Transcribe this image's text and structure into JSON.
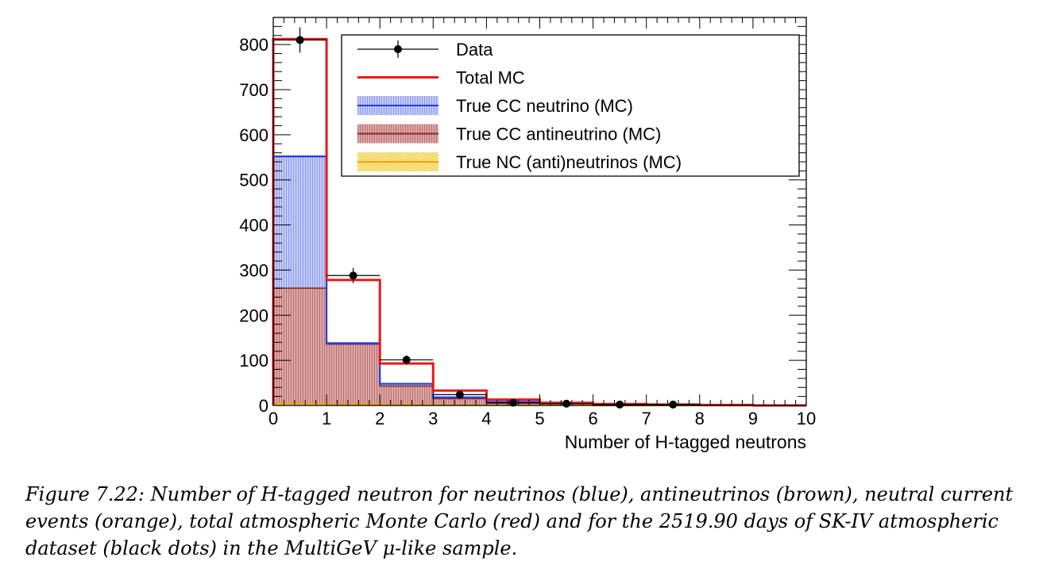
{
  "chart_data": {
    "type": "histogram",
    "xlabel": "Number of H-tagged neutrons",
    "ylabel": "",
    "xlim": [
      0,
      10
    ],
    "ylim": [
      0,
      860
    ],
    "x_ticks": [
      "0",
      "1",
      "2",
      "3",
      "4",
      "5",
      "6",
      "7",
      "8",
      "9",
      "10"
    ],
    "y_ticks": [
      "0",
      "100",
      "200",
      "300",
      "400",
      "500",
      "600",
      "700",
      "800"
    ],
    "bin_edges": [
      0,
      1,
      2,
      3,
      4,
      5,
      6,
      7,
      8,
      9,
      10
    ],
    "series": [
      {
        "name": "Total MC",
        "style": "line",
        "color": "#e8191b",
        "values": [
          812,
          278,
          93,
          33,
          13,
          6,
          3,
          2,
          1,
          0
        ]
      },
      {
        "name": "True CC neutrino (MC)",
        "style": "fill",
        "color": "#1f3ce6",
        "fill": "#b3bdf3",
        "values": [
          552,
          138,
          48,
          18,
          8,
          4,
          2,
          1,
          1,
          0
        ]
      },
      {
        "name": "True CC antineutrino (MC)",
        "style": "fill",
        "color": "#8a2a2a",
        "fill": "#d69a9a",
        "values": [
          260,
          136,
          43,
          15,
          5,
          2,
          1,
          1,
          0,
          0
        ]
      },
      {
        "name": "True NC (anti)neutrinos (MC)",
        "style": "fill",
        "color": "#f5a300",
        "fill": "#f7d86a",
        "values": [
          4,
          3,
          2,
          1,
          1,
          1,
          0,
          0,
          0,
          0
        ]
      }
    ],
    "data_points": {
      "name": "Data",
      "x": [
        0.5,
        1.5,
        2.5,
        3.5,
        4.5,
        5.5,
        6.5,
        7.5
      ],
      "y": [
        810,
        288,
        101,
        24,
        6,
        4,
        2,
        2
      ],
      "yerr": [
        28,
        17,
        10,
        5,
        2.5,
        2,
        1.4,
        1.4
      ]
    },
    "legend": {
      "placement": "top-right"
    }
  },
  "caption": {
    "text": "Figure 7.22: Number of H-tagged neutron for neutrinos (blue), antineutrinos (brown), neutral current events (orange), total atmospheric Monte Carlo (red) and for the 2519.90 days of SK-IV atmospheric dataset (black dots) in the MultiGeV μ-like sample."
  }
}
